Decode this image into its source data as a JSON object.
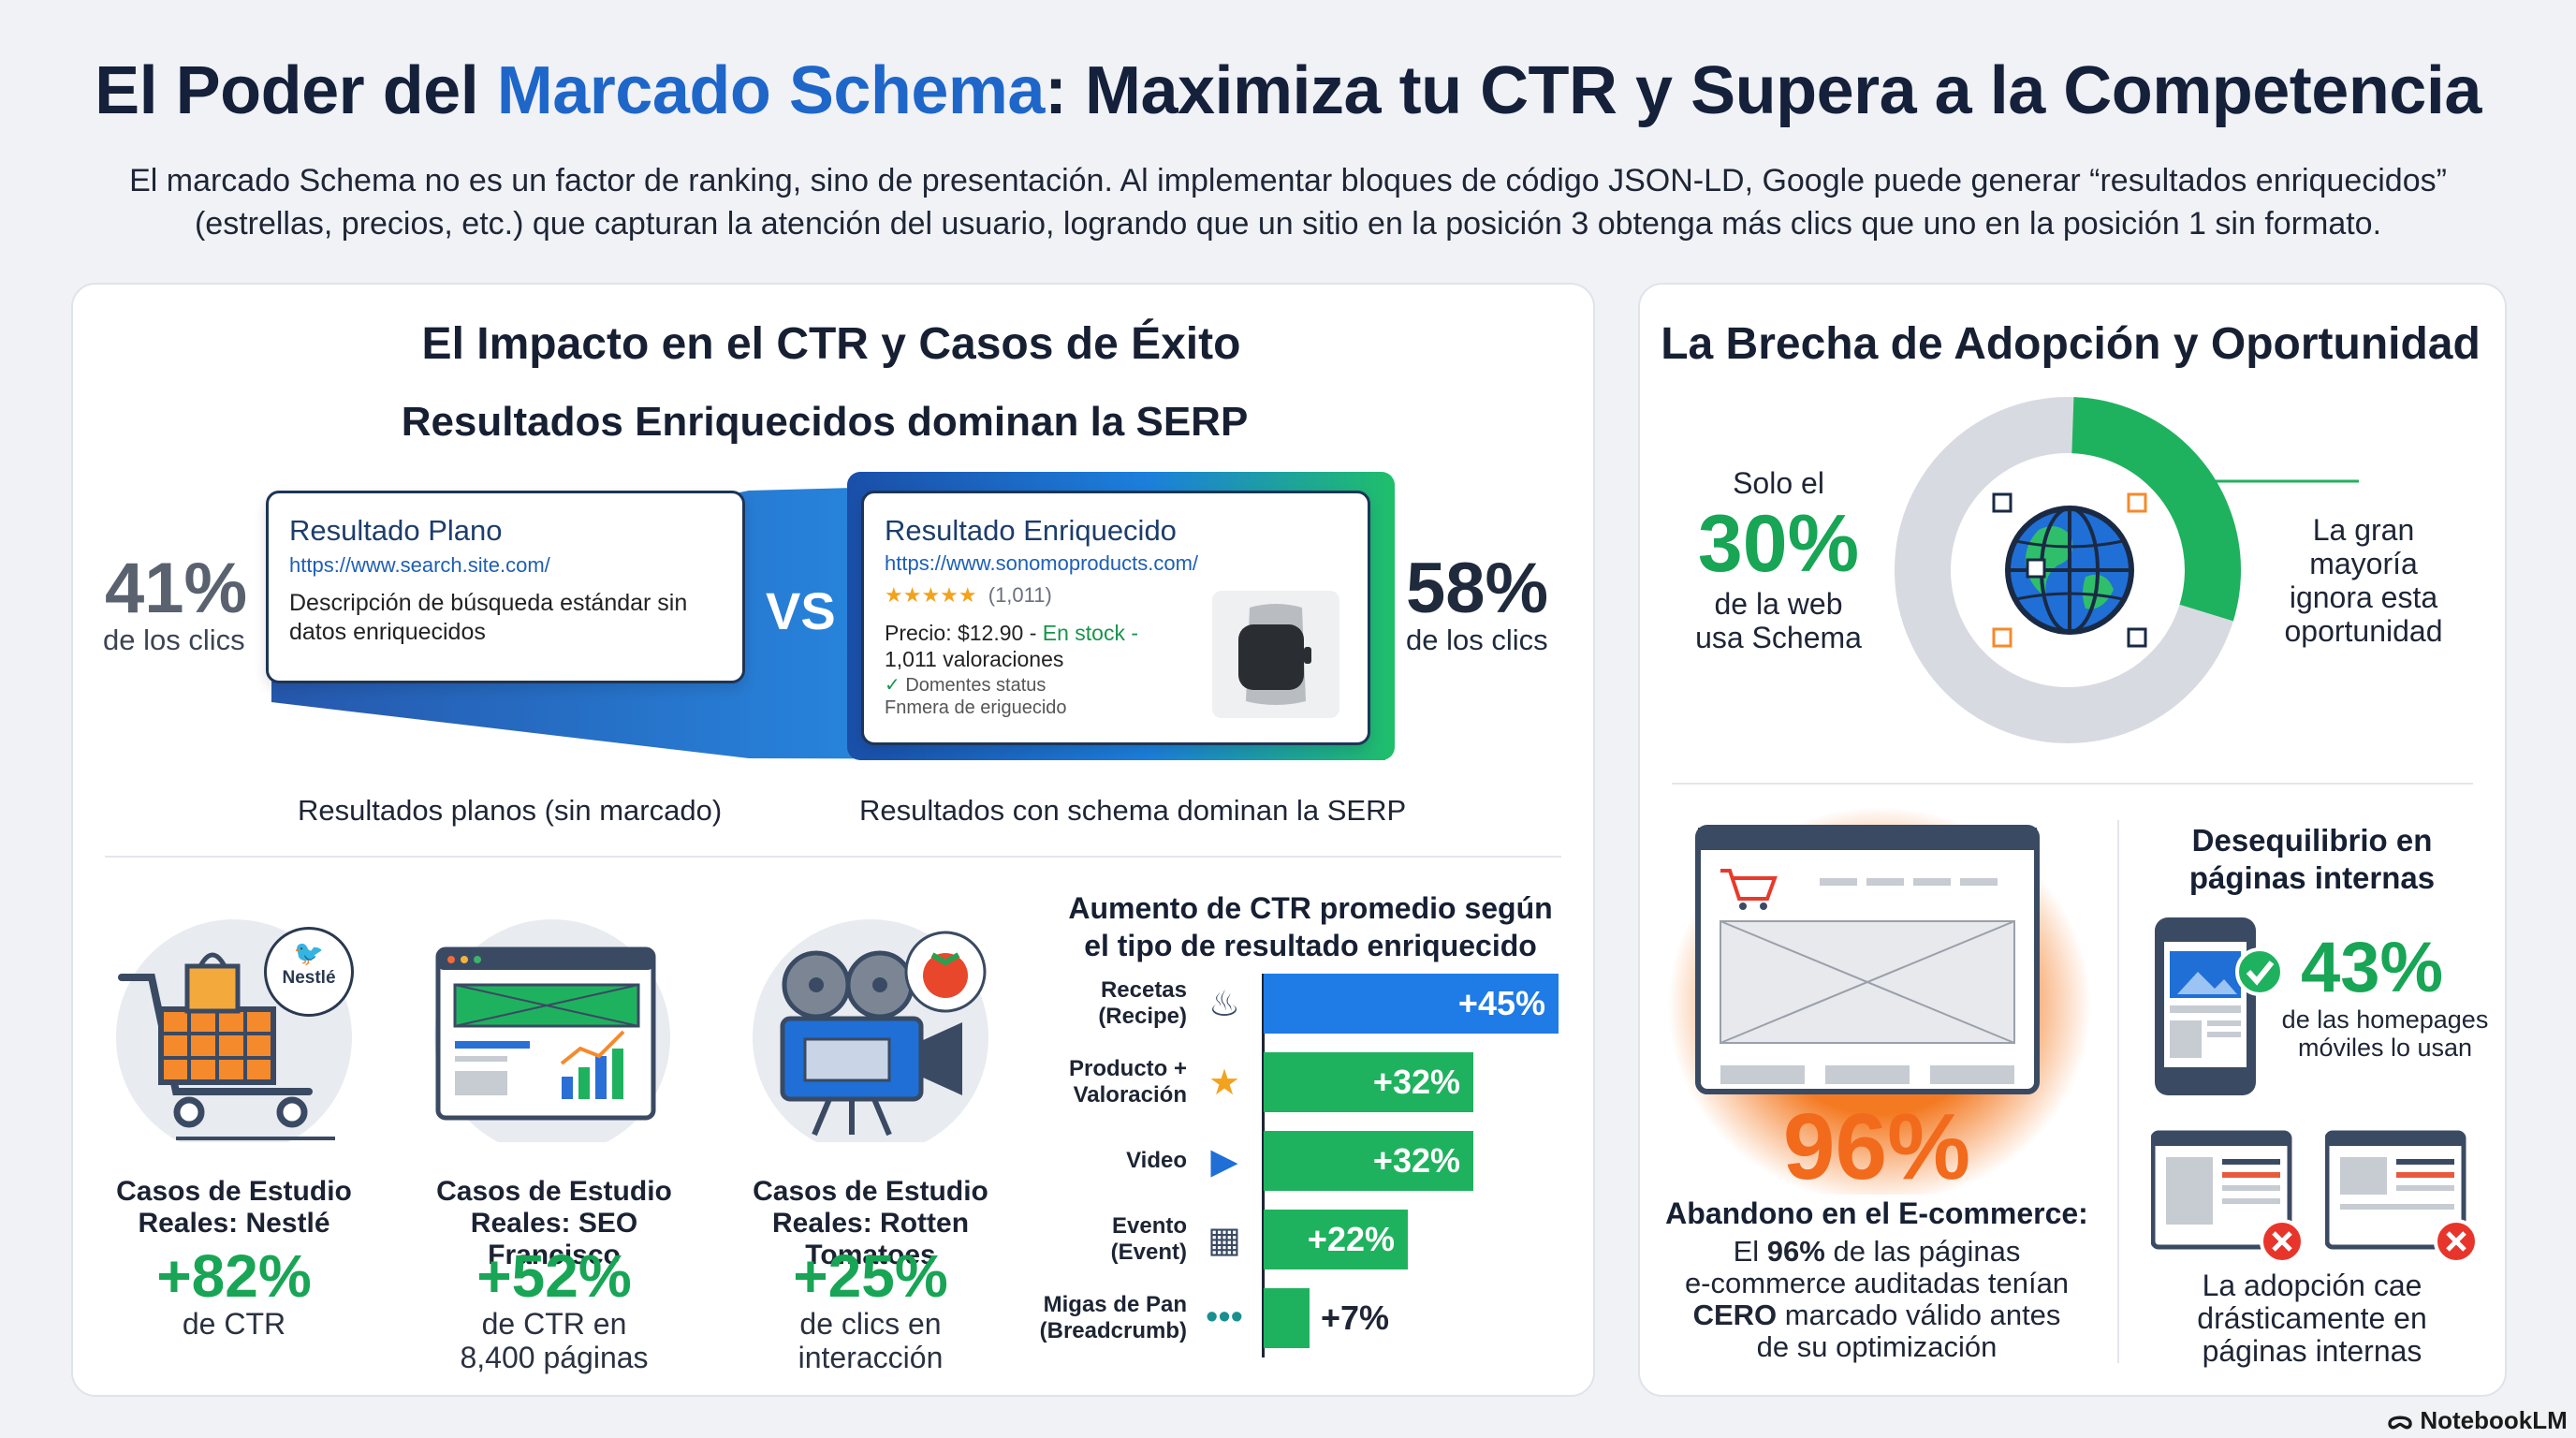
{
  "header": {
    "title_pre": "El Poder del ",
    "title_hl": "Marcado Schema",
    "title_post": ": Maximiza tu CTR y Supera a la Competencia",
    "intro_line1": "El marcado Schema no es un factor de ranking, sino de presentación. Al implementar bloques de código JSON-LD, Google puede generar “resultados enriquecidos”",
    "intro_line2": "(estrellas, precios, etc.) que capturan la atención del usuario, logrando que un sitio en la posición 3 obtenga más clics que uno en la posición 1 sin formato."
  },
  "left": {
    "title": "El Impacto en el CTR y Casos de Éxito",
    "subtitle": "Resultados Enriquecidos dominan la SERP",
    "plain": {
      "pct": "41%",
      "pct_sub": "de los clics",
      "card_title": "Resultado Plano",
      "card_url": "https://www.search.site.com/",
      "card_desc1": "Descripción de búsqueda estándar sin",
      "card_desc2": "datos enriquecidos",
      "caption": "Resultados planos (sin marcado)"
    },
    "vs": "VS",
    "rich": {
      "pct": "58%",
      "pct_sub": "de los clics",
      "card_title": "Resultado Enriquecido",
      "card_url": "https://www.sonomoproducts.com/",
      "stars": "★★★★★",
      "rating_count": "(1,011)",
      "price": "Precio: $12.90 - ",
      "stock": "En stock -",
      "reviews": "1,011 valoraciones",
      "status": "Domentes status",
      "extra": "Fnmera de eriguecido",
      "caption": "Resultados con schema dominan la SERP"
    },
    "cases": [
      {
        "label1": "Casos de Estudio",
        "label2": "Reales: Nestlé",
        "value": "+82%",
        "sub1": "de CTR",
        "sub2": "",
        "logo": "Nestlé"
      },
      {
        "label1": "Casos de Estudio",
        "label2": "Reales: SEO Francisco",
        "value": "+52%",
        "sub1": "de CTR en",
        "sub2": "8,400 páginas"
      },
      {
        "label1": "Casos de Estudio",
        "label2": "Reales: Rotten Tomatoes",
        "value": "+25%",
        "sub1": "de clics en",
        "sub2": "interacción"
      }
    ],
    "chart_title1": "Aumento de CTR promedio según",
    "chart_title2": "el tipo de resultado enriquecido"
  },
  "chart_data": {
    "type": "bar",
    "title": "Aumento de CTR promedio según el tipo de resultado enriquecido",
    "categories": [
      "Recetas (Recipe)",
      "Producto + Valoración",
      "Video",
      "Evento (Event)",
      "Migas de Pan (Breadcrumb)"
    ],
    "label_lines": [
      [
        "Recetas",
        "(Recipe)"
      ],
      [
        "Producto +",
        "Valoración"
      ],
      [
        "Video"
      ],
      [
        "Evento",
        "(Event)"
      ],
      [
        "Migas de Pan",
        "(Breadcrumb)"
      ]
    ],
    "values": [
      45,
      32,
      32,
      22,
      7
    ],
    "value_labels": [
      "+45%",
      "+32%",
      "+32%",
      "+22%",
      "+7%"
    ],
    "colors": [
      "#1f7be6",
      "#1fb25e",
      "#1fb25e",
      "#1fb25e",
      "#1fb25e"
    ],
    "icons": [
      "chef-hat-icon",
      "star-tag-icon",
      "play-icon",
      "calendar-icon",
      "dots-icon"
    ],
    "xlim": [
      0,
      45
    ]
  },
  "right": {
    "title": "La Brecha de Adopción y Oportunidad",
    "donut": {
      "pre": "Solo el",
      "pct": "30%",
      "post1": "de la web",
      "post2": "usa Schema",
      "value": 30,
      "note1": "La gran",
      "note2": "mayoría",
      "note3": "ignora esta",
      "note4": "oportunidad",
      "color_used": "#1fb25e",
      "color_rest": "#d7dae0"
    },
    "ecommerce": {
      "pct": "96%",
      "title": "Abandono en el E-commerce:",
      "l1_pre": "El ",
      "l1_bold": "96%",
      "l1_post": " de las páginas",
      "l2": "e-commerce auditadas tenían",
      "l3_bold": "CERO",
      "l3_post": " marcado válido antes",
      "l4": "de su optimización"
    },
    "internal": {
      "title1": "Desequilibrio en",
      "title2": "páginas internas",
      "pct": "43%",
      "pct_sub1": "de las homepages",
      "pct_sub2": "móviles lo usan",
      "cap1": "La adopción cae",
      "cap2": "drásticamente en",
      "cap3": "páginas internas"
    }
  },
  "footer": {
    "brand": "NotebookLM"
  }
}
